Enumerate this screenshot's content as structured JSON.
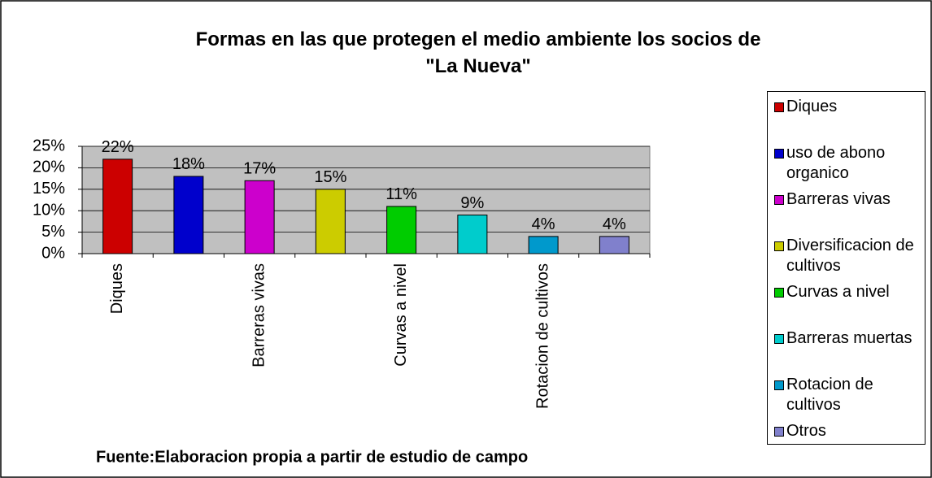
{
  "chart_data": {
    "type": "bar",
    "title": "Formas en las que protegen el medio ambiente los socios de \"La Nueva\"",
    "categories": [
      "Diques",
      "uso de abono organico",
      "Barreras vivas",
      "Diversificacion de cultivos",
      "Curvas a nivel",
      "Barreras muertas",
      "Rotacion de cultivos",
      "Otros"
    ],
    "values": [
      22,
      18,
      17,
      15,
      11,
      9,
      4,
      4
    ],
    "value_labels": [
      "22%",
      "18%",
      "17%",
      "15%",
      "11%",
      "9%",
      "4%",
      "4%"
    ],
    "colors": [
      "#cc0000",
      "#0000cc",
      "#cc00cc",
      "#cccc00",
      "#00cc00",
      "#00cccc",
      "#0099cc",
      "#8080cc"
    ],
    "ylim": [
      0,
      25
    ],
    "yticks": [
      {
        "value": 0,
        "label": "0%"
      },
      {
        "value": 5,
        "label": "5%"
      },
      {
        "value": 10,
        "label": "10%"
      },
      {
        "value": 15,
        "label": "15%"
      },
      {
        "value": 20,
        "label": "20%"
      },
      {
        "value": 25,
        "label": "25%"
      }
    ],
    "x_label_interval": 2,
    "grid": true,
    "legend": "right",
    "source": "Fuente:Elaboracion propia a partir de estudio de campo"
  }
}
